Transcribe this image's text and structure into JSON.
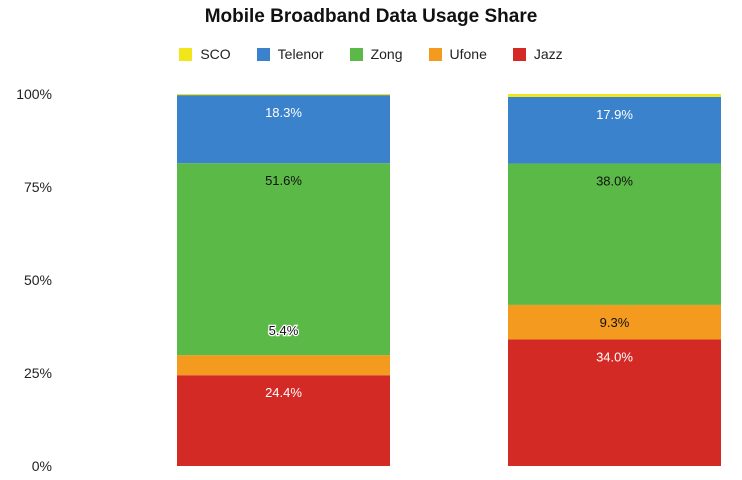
{
  "chart_data": {
    "type": "bar",
    "stacked": true,
    "title": "Mobile Broadband Data Usage Share",
    "xlabel": "",
    "ylabel": "",
    "ylim": [
      0,
      100
    ],
    "yticks": [
      "0%",
      "25%",
      "50%",
      "75%",
      "100%"
    ],
    "categories": [
      "",
      ""
    ],
    "legend_position": "top",
    "series": [
      {
        "name": "Jazz",
        "color": "#d42a26",
        "values": [
          24.4,
          34.0
        ],
        "labels": [
          "24.4%",
          "34.0%"
        ],
        "label_color": "#ffffff"
      },
      {
        "name": "Ufone",
        "color": "#f39a1f",
        "values": [
          5.4,
          9.3
        ],
        "labels": [
          "5.4%",
          "9.3%"
        ],
        "label_color": "#111111"
      },
      {
        "name": "Zong",
        "color": "#5bba47",
        "values": [
          51.6,
          38.0
        ],
        "labels": [
          "51.6%",
          "38.0%"
        ],
        "label_color": "#111111"
      },
      {
        "name": "Telenor",
        "color": "#3b82cc",
        "values": [
          18.3,
          17.9
        ],
        "labels": [
          "18.3%",
          "17.9%"
        ],
        "label_color": "#ffffff"
      },
      {
        "name": "SCO",
        "color": "#f2e51b",
        "values": [
          0.3,
          0.8
        ],
        "labels": [
          "",
          ""
        ],
        "label_color": "#111111"
      }
    ],
    "legend_order": [
      "SCO",
      "Telenor",
      "Zong",
      "Ufone",
      "Jazz"
    ]
  }
}
